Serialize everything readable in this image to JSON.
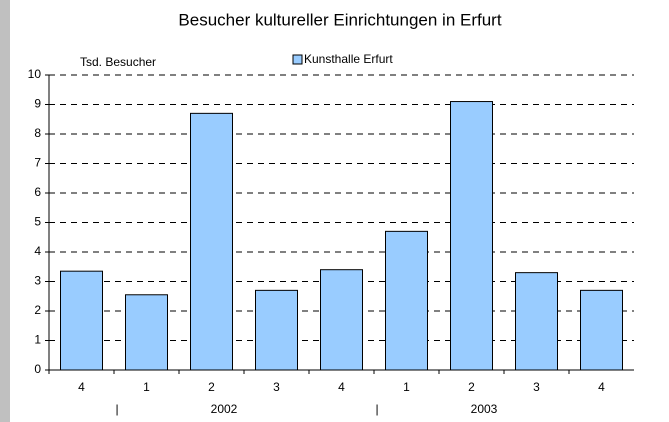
{
  "chart_data": {
    "type": "bar",
    "title": "Besucher kultureller Einrichtungen in Erfurt",
    "y_label": "Tsd. Besucher",
    "categories": [
      "4",
      "1",
      "2",
      "3",
      "4",
      "1",
      "2",
      "3",
      "4"
    ],
    "groups": [
      "2002",
      "2003"
    ],
    "series": [
      {
        "name": "Kunsthalle Erfurt",
        "color": "#99ccff",
        "values": [
          3.35,
          2.55,
          8.7,
          2.7,
          3.4,
          4.7,
          9.1,
          3.3,
          2.7
        ]
      }
    ],
    "ylim": [
      0,
      10
    ],
    "yticks": [
      0,
      1,
      2,
      3,
      4,
      5,
      6,
      7,
      8,
      9,
      10
    ],
    "grid": true
  }
}
